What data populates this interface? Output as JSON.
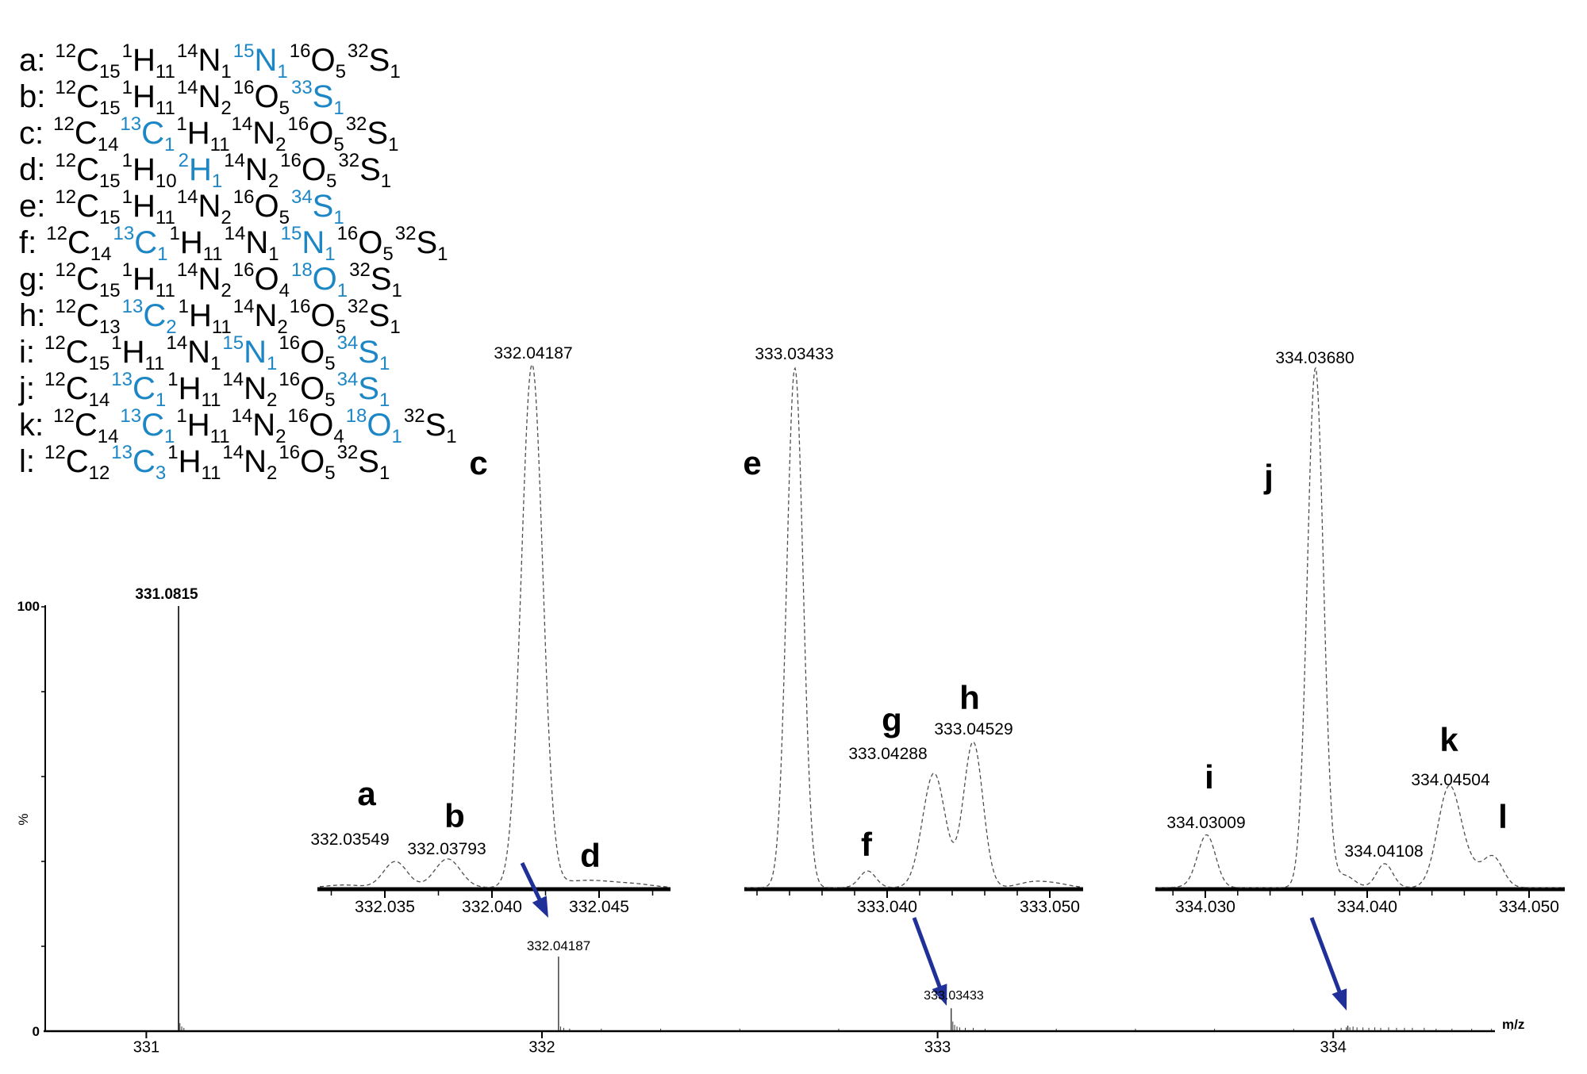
{
  "colors": {
    "highlight_blue": "#1d87c6",
    "arrow_navy": "#203099",
    "trace_gray": "#4d4d4d",
    "spike_dark": "#333333",
    "axis_black": "#000000"
  },
  "axis_labels": {
    "y_max": "100",
    "y_min": "0",
    "y_title": "%",
    "x_title": "m/z"
  },
  "formula_list": {
    "items": [
      {
        "letter": "a",
        "tokens": [
          {
            "s": "12",
            "e": "C",
            "b": "15",
            "hl": false
          },
          {
            "s": "1",
            "e": "H",
            "b": "11",
            "hl": false
          },
          {
            "s": "14",
            "e": "N",
            "b": "1",
            "hl": false
          },
          {
            "s": "15",
            "e": "N",
            "b": "1",
            "hl": true
          },
          {
            "s": "16",
            "e": "O",
            "b": "5",
            "hl": false
          },
          {
            "s": "32",
            "e": "S",
            "b": "1",
            "hl": false
          }
        ]
      },
      {
        "letter": "b",
        "tokens": [
          {
            "s": "12",
            "e": "C",
            "b": "15",
            "hl": false
          },
          {
            "s": "1",
            "e": "H",
            "b": "11",
            "hl": false
          },
          {
            "s": "14",
            "e": "N",
            "b": "2",
            "hl": false
          },
          {
            "s": "16",
            "e": "O",
            "b": "5",
            "hl": false
          },
          {
            "s": "33",
            "e": "S",
            "b": "1",
            "hl": true
          }
        ]
      },
      {
        "letter": "c",
        "tokens": [
          {
            "s": "12",
            "e": "C",
            "b": "14",
            "hl": false
          },
          {
            "s": "13",
            "e": "C",
            "b": "1",
            "hl": true
          },
          {
            "s": "1",
            "e": "H",
            "b": "11",
            "hl": false
          },
          {
            "s": "14",
            "e": "N",
            "b": "2",
            "hl": false
          },
          {
            "s": "16",
            "e": "O",
            "b": "5",
            "hl": false
          },
          {
            "s": "32",
            "e": "S",
            "b": "1",
            "hl": false
          }
        ]
      },
      {
        "letter": "d",
        "tokens": [
          {
            "s": "12",
            "e": "C",
            "b": "15",
            "hl": false
          },
          {
            "s": "1",
            "e": "H",
            "b": "10",
            "hl": false
          },
          {
            "s": "2",
            "e": "H",
            "b": "1",
            "hl": true
          },
          {
            "s": "14",
            "e": "N",
            "b": "2",
            "hl": false
          },
          {
            "s": "16",
            "e": "O",
            "b": "5",
            "hl": false
          },
          {
            "s": "32",
            "e": "S",
            "b": "1",
            "hl": false
          }
        ]
      },
      {
        "letter": "e",
        "tokens": [
          {
            "s": "12",
            "e": "C",
            "b": "15",
            "hl": false
          },
          {
            "s": "1",
            "e": "H",
            "b": "11",
            "hl": false
          },
          {
            "s": "14",
            "e": "N",
            "b": "2",
            "hl": false
          },
          {
            "s": "16",
            "e": "O",
            "b": "5",
            "hl": false
          },
          {
            "s": "34",
            "e": "S",
            "b": "1",
            "hl": true
          }
        ]
      },
      {
        "letter": "f",
        "tokens": [
          {
            "s": "12",
            "e": "C",
            "b": "14",
            "hl": false
          },
          {
            "s": "13",
            "e": "C",
            "b": "1",
            "hl": true
          },
          {
            "s": "1",
            "e": "H",
            "b": "11",
            "hl": false
          },
          {
            "s": "14",
            "e": "N",
            "b": "1",
            "hl": false
          },
          {
            "s": "15",
            "e": "N",
            "b": "1",
            "hl": true
          },
          {
            "s": "16",
            "e": "O",
            "b": "5",
            "hl": false
          },
          {
            "s": "32",
            "e": "S",
            "b": "1",
            "hl": false
          }
        ]
      },
      {
        "letter": "g",
        "tokens": [
          {
            "s": "12",
            "e": "C",
            "b": "15",
            "hl": false
          },
          {
            "s": "1",
            "e": "H",
            "b": "11",
            "hl": false
          },
          {
            "s": "14",
            "e": "N",
            "b": "2",
            "hl": false
          },
          {
            "s": "16",
            "e": "O",
            "b": "4",
            "hl": false
          },
          {
            "s": "18",
            "e": "O",
            "b": "1",
            "hl": true
          },
          {
            "s": "32",
            "e": "S",
            "b": "1",
            "hl": false
          }
        ]
      },
      {
        "letter": "h",
        "tokens": [
          {
            "s": "12",
            "e": "C",
            "b": "13",
            "hl": false
          },
          {
            "s": "13",
            "e": "C",
            "b": "2",
            "hl": true
          },
          {
            "s": "1",
            "e": "H",
            "b": "11",
            "hl": false
          },
          {
            "s": "14",
            "e": "N",
            "b": "2",
            "hl": false
          },
          {
            "s": "16",
            "e": "O",
            "b": "5",
            "hl": false
          },
          {
            "s": "32",
            "e": "S",
            "b": "1",
            "hl": false
          }
        ]
      },
      {
        "letter": "i",
        "tokens": [
          {
            "s": "12",
            "e": "C",
            "b": "15",
            "hl": false
          },
          {
            "s": "1",
            "e": "H",
            "b": "11",
            "hl": false
          },
          {
            "s": "14",
            "e": "N",
            "b": "1",
            "hl": false
          },
          {
            "s": "15",
            "e": "N",
            "b": "1",
            "hl": true
          },
          {
            "s": "16",
            "e": "O",
            "b": "5",
            "hl": false
          },
          {
            "s": "34",
            "e": "S",
            "b": "1",
            "hl": true
          }
        ]
      },
      {
        "letter": "j",
        "tokens": [
          {
            "s": "12",
            "e": "C",
            "b": "14",
            "hl": false
          },
          {
            "s": "13",
            "e": "C",
            "b": "1",
            "hl": true
          },
          {
            "s": "1",
            "e": "H",
            "b": "11",
            "hl": false
          },
          {
            "s": "14",
            "e": "N",
            "b": "2",
            "hl": false
          },
          {
            "s": "16",
            "e": "O",
            "b": "5",
            "hl": false
          },
          {
            "s": "34",
            "e": "S",
            "b": "1",
            "hl": true
          }
        ]
      },
      {
        "letter": "k",
        "tokens": [
          {
            "s": "12",
            "e": "C",
            "b": "14",
            "hl": false
          },
          {
            "s": "13",
            "e": "C",
            "b": "1",
            "hl": true
          },
          {
            "s": "1",
            "e": "H",
            "b": "11",
            "hl": false
          },
          {
            "s": "14",
            "e": "N",
            "b": "2",
            "hl": false
          },
          {
            "s": "16",
            "e": "O",
            "b": "4",
            "hl": false
          },
          {
            "s": "18",
            "e": "O",
            "b": "1",
            "hl": true
          },
          {
            "s": "32",
            "e": "S",
            "b": "1",
            "hl": false
          }
        ]
      },
      {
        "letter": "l",
        "tokens": [
          {
            "s": "12",
            "e": "C",
            "b": "12",
            "hl": false
          },
          {
            "s": "13",
            "e": "C",
            "b": "3",
            "hl": true
          },
          {
            "s": "1",
            "e": "H",
            "b": "11",
            "hl": false
          },
          {
            "s": "14",
            "e": "N",
            "b": "2",
            "hl": false
          },
          {
            "s": "16",
            "e": "O",
            "b": "5",
            "hl": false
          },
          {
            "s": "32",
            "e": "S",
            "b": "1",
            "hl": false
          }
        ]
      }
    ]
  },
  "chart_data": {
    "type": "line",
    "description": "High-resolution mass spectrum with three isotopic fine-structure zoom insets",
    "main": {
      "type": "line",
      "xlabel": "m/z",
      "ylabel": "%",
      "x_range": [
        330.74,
        334.55
      ],
      "y_range": [
        0,
        100
      ],
      "x_ticks": [
        {
          "label": "331",
          "mz": 331
        },
        {
          "label": "332",
          "mz": 332
        },
        {
          "label": "333",
          "mz": 333
        },
        {
          "label": "334",
          "mz": 334
        }
      ],
      "peaks": [
        {
          "mz": 331.0815,
          "rel_int": 100,
          "label": "331.0815"
        },
        {
          "mz": 332.04187,
          "rel_int": 17.4,
          "label": "332.04187"
        },
        {
          "mz": 333.03433,
          "rel_int": 5.2,
          "label": "333.03433"
        },
        {
          "mz": 334.0368,
          "rel_int": 1.1,
          "label": null
        }
      ],
      "noise": [
        [
          331.085,
          1.7
        ],
        [
          331.0895,
          0.9
        ],
        [
          331.095,
          0.6
        ],
        [
          332.047,
          0.9
        ],
        [
          332.055,
          0.6
        ],
        [
          332.07,
          0.4
        ],
        [
          332.15,
          0.4
        ],
        [
          332.3,
          0.4
        ],
        [
          332.5,
          0.4
        ],
        [
          332.75,
          0.4
        ],
        [
          333.0385,
          2.1
        ],
        [
          333.043,
          1.3
        ],
        [
          333.049,
          0.9
        ],
        [
          333.056,
          0.7
        ],
        [
          333.07,
          0.6
        ],
        [
          333.09,
          0.6
        ],
        [
          333.12,
          0.4
        ],
        [
          333.3,
          0.4
        ],
        [
          333.5,
          0.4
        ],
        [
          333.7,
          0.4
        ],
        [
          333.9,
          0.4
        ],
        [
          334.005,
          0.4
        ],
        [
          334.02,
          0.6
        ],
        [
          334.033,
          0.7
        ],
        [
          334.042,
          0.7
        ],
        [
          334.05,
          0.9
        ],
        [
          334.06,
          0.7
        ],
        [
          334.075,
          0.7
        ],
        [
          334.09,
          0.6
        ],
        [
          334.105,
          0.7
        ],
        [
          334.12,
          0.6
        ],
        [
          334.14,
          0.7
        ],
        [
          334.16,
          0.6
        ],
        [
          334.18,
          0.6
        ],
        [
          334.2,
          0.6
        ],
        [
          334.23,
          0.6
        ],
        [
          334.26,
          0.4
        ],
        [
          334.3,
          0.4
        ],
        [
          334.35,
          0.4
        ],
        [
          334.4,
          0.4
        ],
        [
          334.45,
          0.4
        ]
      ]
    },
    "insets": [
      {
        "type": "line",
        "x_range": [
          332.032,
          332.048
        ],
        "x_ticks": [
          {
            "label": "332.035",
            "mz": 332.035
          },
          {
            "label": "332.040",
            "mz": 332.04
          },
          {
            "label": "332.045",
            "mz": 332.045
          }
        ],
        "peaks": [
          {
            "letter": "a",
            "mz": 332.03549,
            "label": "332.03549",
            "rel_int": 5.0,
            "sigma_mz": 0.00055
          },
          {
            "letter": "b",
            "mz": 332.03793,
            "label": "332.03793",
            "rel_int": 5.5,
            "sigma_mz": 0.0006
          },
          {
            "letter": "c",
            "mz": 332.04187,
            "label": "332.04187",
            "rel_int": 100,
            "sigma_mz": 0.0005
          },
          {
            "letter": "d",
            "mz": 332.0445,
            "label": null,
            "rel_int": 1.4,
            "sigma_mz": 0.0014
          }
        ],
        "minor_features": [
          [
            332.0331,
            0.5,
            0.0008
          ],
          [
            332.0468,
            0.4,
            0.0008
          ]
        ]
      },
      {
        "type": "line",
        "x_range": [
          333.0312,
          333.052
        ],
        "x_ticks": [
          {
            "label": "333.040",
            "mz": 333.04
          },
          {
            "label": "333.050",
            "mz": 333.05
          }
        ],
        "peaks": [
          {
            "letter": "e",
            "mz": 333.03433,
            "label": "333.03433",
            "rel_int": 100,
            "sigma_mz": 0.0005
          },
          {
            "letter": "f",
            "mz": 333.0388,
            "label": null,
            "rel_int": 3.2,
            "sigma_mz": 0.0005
          },
          {
            "letter": "g",
            "mz": 333.04288,
            "label": "333.04288",
            "rel_int": 22,
            "sigma_mz": 0.0007
          },
          {
            "letter": "h",
            "mz": 333.04529,
            "label": "333.04529",
            "rel_int": 28,
            "sigma_mz": 0.0006
          }
        ],
        "minor_features": [
          [
            333.049,
            1.1,
            0.0009
          ],
          [
            333.0505,
            0.6,
            0.0008
          ]
        ]
      },
      {
        "type": "line",
        "x_range": [
          334.027,
          334.052
        ],
        "x_ticks": [
          {
            "label": "334.030",
            "mz": 334.03
          },
          {
            "label": "334.040",
            "mz": 334.04
          },
          {
            "label": "334.050",
            "mz": 334.05
          }
        ],
        "peaks": [
          {
            "letter": "i",
            "mz": 334.03009,
            "label": "334.03009",
            "rel_int": 9.8,
            "sigma_mz": 0.00055
          },
          {
            "letter": "j",
            "mz": 334.0368,
            "label": "334.03680",
            "rel_int": 100,
            "sigma_mz": 0.0005
          },
          {
            "letter": null,
            "mz": 334.04108,
            "label": "334.04108",
            "rel_int": 4.6,
            "sigma_mz": 0.0005
          },
          {
            "letter": "k",
            "mz": 334.04504,
            "label": "334.04504",
            "rel_int": 18.6,
            "sigma_mz": 0.0007
          },
          {
            "letter": "l",
            "mz": 334.0478,
            "label": null,
            "rel_int": 5.5,
            "sigma_mz": 0.0006
          }
        ],
        "minor_features": [
          [
            334.0295,
            0.5,
            0.0007
          ],
          [
            334.0386,
            2.3,
            0.0006
          ],
          [
            334.0463,
            3.5,
            0.0008
          ]
        ]
      }
    ]
  }
}
